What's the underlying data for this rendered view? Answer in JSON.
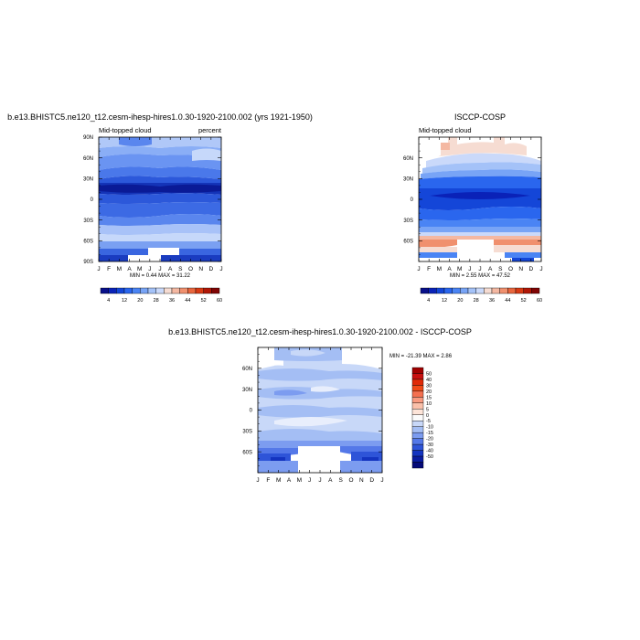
{
  "chart_data": [
    {
      "type": "heatmap",
      "title": "b.e13.BHISTC5.ne120_t12.cesm-ihesp-hires1.0.30-1920-2100.002 (yrs 1921-1950)",
      "left_label": "Mid-topped cloud",
      "right_label": "percent",
      "stats": "MIN =   0.44 MAX =   31.22",
      "x_ticks": [
        "J",
        "F",
        "M",
        "A",
        "M",
        "J",
        "J",
        "A",
        "S",
        "O",
        "N",
        "D",
        "J"
      ],
      "y_ticks": [
        "90N",
        "60N",
        "30N",
        "0",
        "30S",
        "60S",
        "90S"
      ],
      "y_values": [
        90,
        60,
        30,
        0,
        -30,
        -60,
        -90
      ],
      "ylim": [
        -90,
        90
      ],
      "colorbar_labels": [
        "4",
        "12",
        "20",
        "28",
        "36",
        "44",
        "52",
        "60"
      ],
      "colorbar_colors": [
        "#08108a",
        "#0a22b8",
        "#1446d8",
        "#2a66ee",
        "#4a84f4",
        "#78a4f6",
        "#a4c2f8",
        "#cad9fa",
        "#f6dcd2",
        "#f4b8a2",
        "#f0906e",
        "#e8663e",
        "#d83a14",
        "#b01606",
        "#800404"
      ]
    },
    {
      "type": "heatmap",
      "title": "ISCCP-COSP",
      "left_label": "Mid-topped cloud",
      "stats": "MIN =   2.55 MAX =   47.52",
      "x_ticks": [
        "J",
        "F",
        "M",
        "A",
        "M",
        "J",
        "J",
        "A",
        "S",
        "O",
        "N",
        "D",
        "J"
      ],
      "y_ticks": [
        "60N",
        "30N",
        "0",
        "30S",
        "60S"
      ],
      "y_values": [
        60,
        30,
        0,
        -30,
        -60
      ],
      "ylim": [
        -90,
        90
      ],
      "colorbar_labels": [
        "4",
        "12",
        "20",
        "28",
        "36",
        "44",
        "52",
        "60"
      ],
      "colorbar_colors": [
        "#08108a",
        "#0a22b8",
        "#1446d8",
        "#2a66ee",
        "#4a84f4",
        "#78a4f6",
        "#a4c2f8",
        "#cad9fa",
        "#f6dcd2",
        "#f4b8a2",
        "#f0906e",
        "#e8663e",
        "#d83a14",
        "#b01606",
        "#800404"
      ]
    },
    {
      "type": "heatmap",
      "title": "b.e13.BHISTC5.ne120_t12.cesm-ihesp-hires1.0.30-1920-2100.002 - ISCCP-COSP",
      "stats": "MIN = -21.39 MAX =    2.86",
      "x_ticks": [
        "J",
        "F",
        "M",
        "A",
        "M",
        "J",
        "J",
        "A",
        "S",
        "O",
        "N",
        "D",
        "J"
      ],
      "y_ticks": [
        "60N",
        "30N",
        "0",
        "30S",
        "60S"
      ],
      "y_values": [
        60,
        30,
        0,
        -30,
        -60
      ],
      "ylim": [
        -90,
        90
      ],
      "colorbar_labels": [
        "50",
        "40",
        "30",
        "20",
        "15",
        "10",
        "5",
        "0",
        "-5",
        "-10",
        "-15",
        "-20",
        "-30",
        "-40",
        "-50"
      ],
      "colorbar_colors": [
        "#a00000",
        "#c81010",
        "#e02a08",
        "#f04a18",
        "#f47050",
        "#f89a80",
        "#fac0aa",
        "#fde4d8",
        "#fbfbfb",
        "#c8d8f8",
        "#a4bef4",
        "#7c9cf0",
        "#5478e8",
        "#2e54d8",
        "#1434c0",
        "#0a1ca0",
        "#050a78"
      ]
    }
  ]
}
